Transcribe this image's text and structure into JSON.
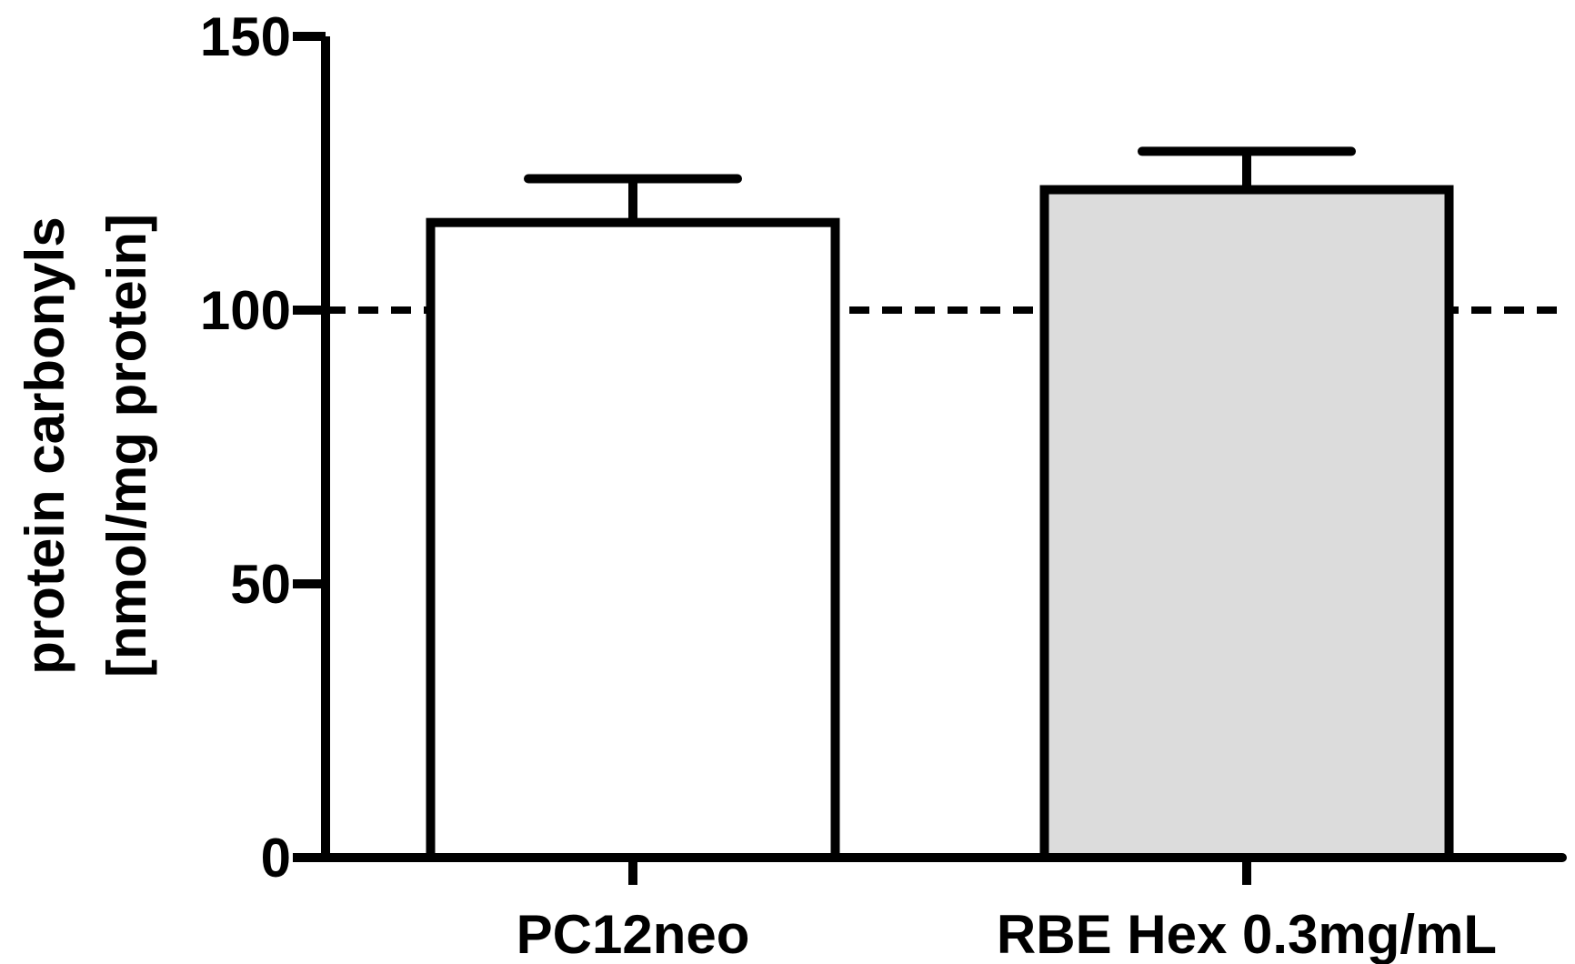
{
  "chart_data": {
    "type": "bar",
    "title": "",
    "categories": [
      "PC12neo",
      "RBE Hex 0.3mg/mL"
    ],
    "values": [
      116,
      122
    ],
    "error_upper": [
      124,
      129
    ],
    "bar_colors": [
      "#ffffff",
      "#dcdcdc"
    ],
    "stroke_color": "#000000",
    "ylabel_line1": "protein carbonyls",
    "ylabel_line2": "[nmol/mg protein]",
    "xlabel": "",
    "ylim": [
      0,
      150
    ],
    "yticks": [
      0,
      50,
      100,
      150
    ],
    "ytick_labels": [
      "0",
      "50",
      "100",
      "150"
    ],
    "reference_line": {
      "value": 100,
      "style": "dashed"
    },
    "grid": false,
    "legend": "none"
  }
}
